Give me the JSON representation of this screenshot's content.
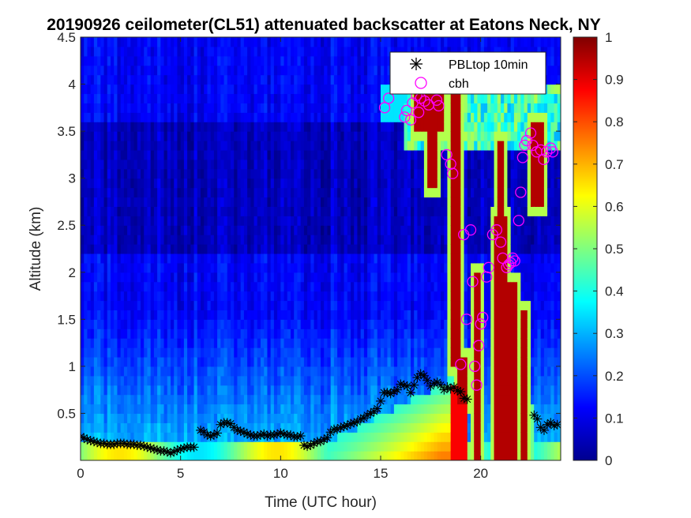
{
  "chart_data": {
    "type": "heatmap",
    "title": "20190926 ceilometer(CL51) attenuated backscatter at Eatons Neck, NY",
    "xlabel": "Time (UTC hour)",
    "ylabel": "Altitude (km)",
    "xlim": [
      0,
      24
    ],
    "ylim": [
      0,
      4.5
    ],
    "xticks": [
      0,
      5,
      10,
      15,
      20
    ],
    "xtick_labels": [
      "0",
      "5",
      "10",
      "15",
      "20"
    ],
    "yticks": [
      0.5,
      1,
      1.5,
      2,
      2.5,
      3,
      3.5,
      4,
      4.5
    ],
    "ytick_labels": [
      "0.5",
      "1",
      "1.5",
      "2",
      "2.5",
      "3",
      "3.5",
      "4",
      "4.5"
    ],
    "colorbar": {
      "colormap": "jet",
      "clim": [
        0,
        1
      ],
      "ticks": [
        0,
        0.1,
        0.2,
        0.3,
        0.4,
        0.5,
        0.6,
        0.7,
        0.8,
        0.9,
        1
      ],
      "tick_labels": [
        "0",
        "0.1",
        "0.2",
        "0.3",
        "0.4",
        "0.5",
        "0.6",
        "0.7",
        "0.8",
        "0.9",
        "1"
      ]
    },
    "legend": {
      "position": "top-right",
      "entries": [
        {
          "label": "PBLtop 10min",
          "marker": "asterisk",
          "color": "#000000"
        },
        {
          "label": "cbh",
          "marker": "circle",
          "color": "#ff00ff"
        }
      ]
    },
    "series": [
      {
        "name": "PBLtop 10min",
        "x": [
          0.0,
          0.17,
          0.33,
          0.5,
          0.67,
          0.83,
          1.0,
          1.17,
          1.33,
          1.5,
          1.67,
          1.83,
          2.0,
          2.17,
          2.33,
          2.5,
          2.67,
          2.83,
          3.0,
          3.17,
          3.33,
          3.5,
          3.67,
          3.83,
          4.0,
          4.17,
          4.33,
          4.5,
          4.67,
          4.83,
          5.0,
          5.17,
          5.33,
          5.5,
          5.67,
          6.0,
          6.17,
          6.33,
          6.5,
          6.67,
          6.83,
          7.0,
          7.17,
          7.33,
          7.5,
          7.67,
          7.83,
          8.0,
          8.17,
          8.33,
          8.5,
          8.67,
          8.83,
          9.0,
          9.17,
          9.33,
          9.5,
          9.67,
          9.83,
          10.0,
          10.17,
          10.33,
          10.5,
          10.67,
          10.83,
          11.0,
          11.17,
          11.33,
          11.5,
          11.67,
          11.83,
          12.0,
          12.17,
          12.33,
          12.5,
          12.67,
          12.83,
          13.0,
          13.17,
          13.33,
          13.5,
          13.67,
          13.83,
          14.0,
          14.17,
          14.33,
          14.5,
          14.67,
          14.83,
          15.0,
          15.17,
          15.33,
          15.5,
          15.67,
          15.83,
          16.0,
          16.17,
          16.33,
          16.5,
          16.67,
          16.83,
          17.0,
          17.17,
          17.33,
          17.5,
          17.67,
          17.83,
          18.0,
          18.17,
          18.33,
          18.5,
          18.67,
          18.83,
          19.0,
          19.17,
          19.33,
          22.67,
          22.83,
          23.0,
          23.17,
          23.33,
          23.5,
          23.67,
          23.83
        ],
        "y": [
          0.25,
          0.24,
          0.22,
          0.21,
          0.2,
          0.19,
          0.18,
          0.18,
          0.17,
          0.17,
          0.17,
          0.18,
          0.18,
          0.18,
          0.17,
          0.17,
          0.17,
          0.16,
          0.16,
          0.15,
          0.14,
          0.13,
          0.12,
          0.11,
          0.1,
          0.1,
          0.09,
          0.08,
          0.09,
          0.11,
          0.12,
          0.13,
          0.14,
          0.14,
          0.14,
          0.32,
          0.3,
          0.27,
          0.26,
          0.27,
          0.29,
          0.38,
          0.4,
          0.4,
          0.39,
          0.35,
          0.32,
          0.31,
          0.3,
          0.28,
          0.27,
          0.26,
          0.26,
          0.27,
          0.28,
          0.26,
          0.27,
          0.27,
          0.28,
          0.29,
          0.28,
          0.27,
          0.27,
          0.25,
          0.25,
          0.26,
          0.16,
          0.15,
          0.16,
          0.18,
          0.2,
          0.2,
          0.22,
          0.24,
          0.3,
          0.33,
          0.33,
          0.35,
          0.36,
          0.37,
          0.39,
          0.4,
          0.41,
          0.44,
          0.45,
          0.48,
          0.5,
          0.52,
          0.55,
          0.63,
          0.72,
          0.72,
          0.71,
          0.73,
          0.75,
          0.81,
          0.8,
          0.79,
          0.72,
          0.8,
          0.88,
          0.92,
          0.9,
          0.85,
          0.79,
          0.82,
          0.83,
          0.8,
          0.75,
          0.78,
          0.76,
          0.78,
          0.74,
          0.73,
          0.66,
          0.65,
          0.48,
          0.44,
          0.35,
          0.32,
          0.38,
          0.4,
          0.37,
          0.38
        ]
      },
      {
        "name": "cbh",
        "x": [
          15.2,
          15.4,
          16.2,
          16.3,
          16.5,
          16.6,
          16.8,
          16.9,
          17.0,
          17.2,
          17.4,
          17.8,
          17.9,
          18.3,
          18.5,
          18.6,
          19.0,
          19.15,
          19.3,
          19.5,
          19.6,
          19.7,
          19.8,
          19.9,
          20.0,
          20.1,
          20.3,
          20.4,
          20.6,
          20.8,
          21.0,
          21.1,
          21.3,
          21.4,
          21.5,
          21.6,
          21.7,
          21.9,
          22.0,
          22.1,
          22.2,
          22.3,
          22.5,
          22.6,
          22.8,
          23.0,
          23.15,
          23.3,
          23.5,
          23.6
        ],
        "y": [
          3.75,
          3.85,
          3.65,
          3.72,
          3.62,
          3.8,
          3.88,
          3.7,
          3.85,
          3.82,
          3.78,
          3.83,
          3.77,
          3.25,
          3.15,
          3.05,
          1.02,
          2.4,
          1.5,
          2.45,
          1.9,
          1.0,
          0.8,
          1.22,
          1.45,
          1.52,
          1.95,
          2.05,
          2.4,
          2.45,
          2.32,
          2.15,
          2.05,
          2.08,
          2.1,
          2.15,
          2.12,
          2.55,
          2.85,
          3.22,
          3.35,
          3.4,
          3.48,
          3.35,
          3.28,
          3.3,
          3.2,
          3.28,
          3.32,
          3.28
        ]
      }
    ]
  }
}
